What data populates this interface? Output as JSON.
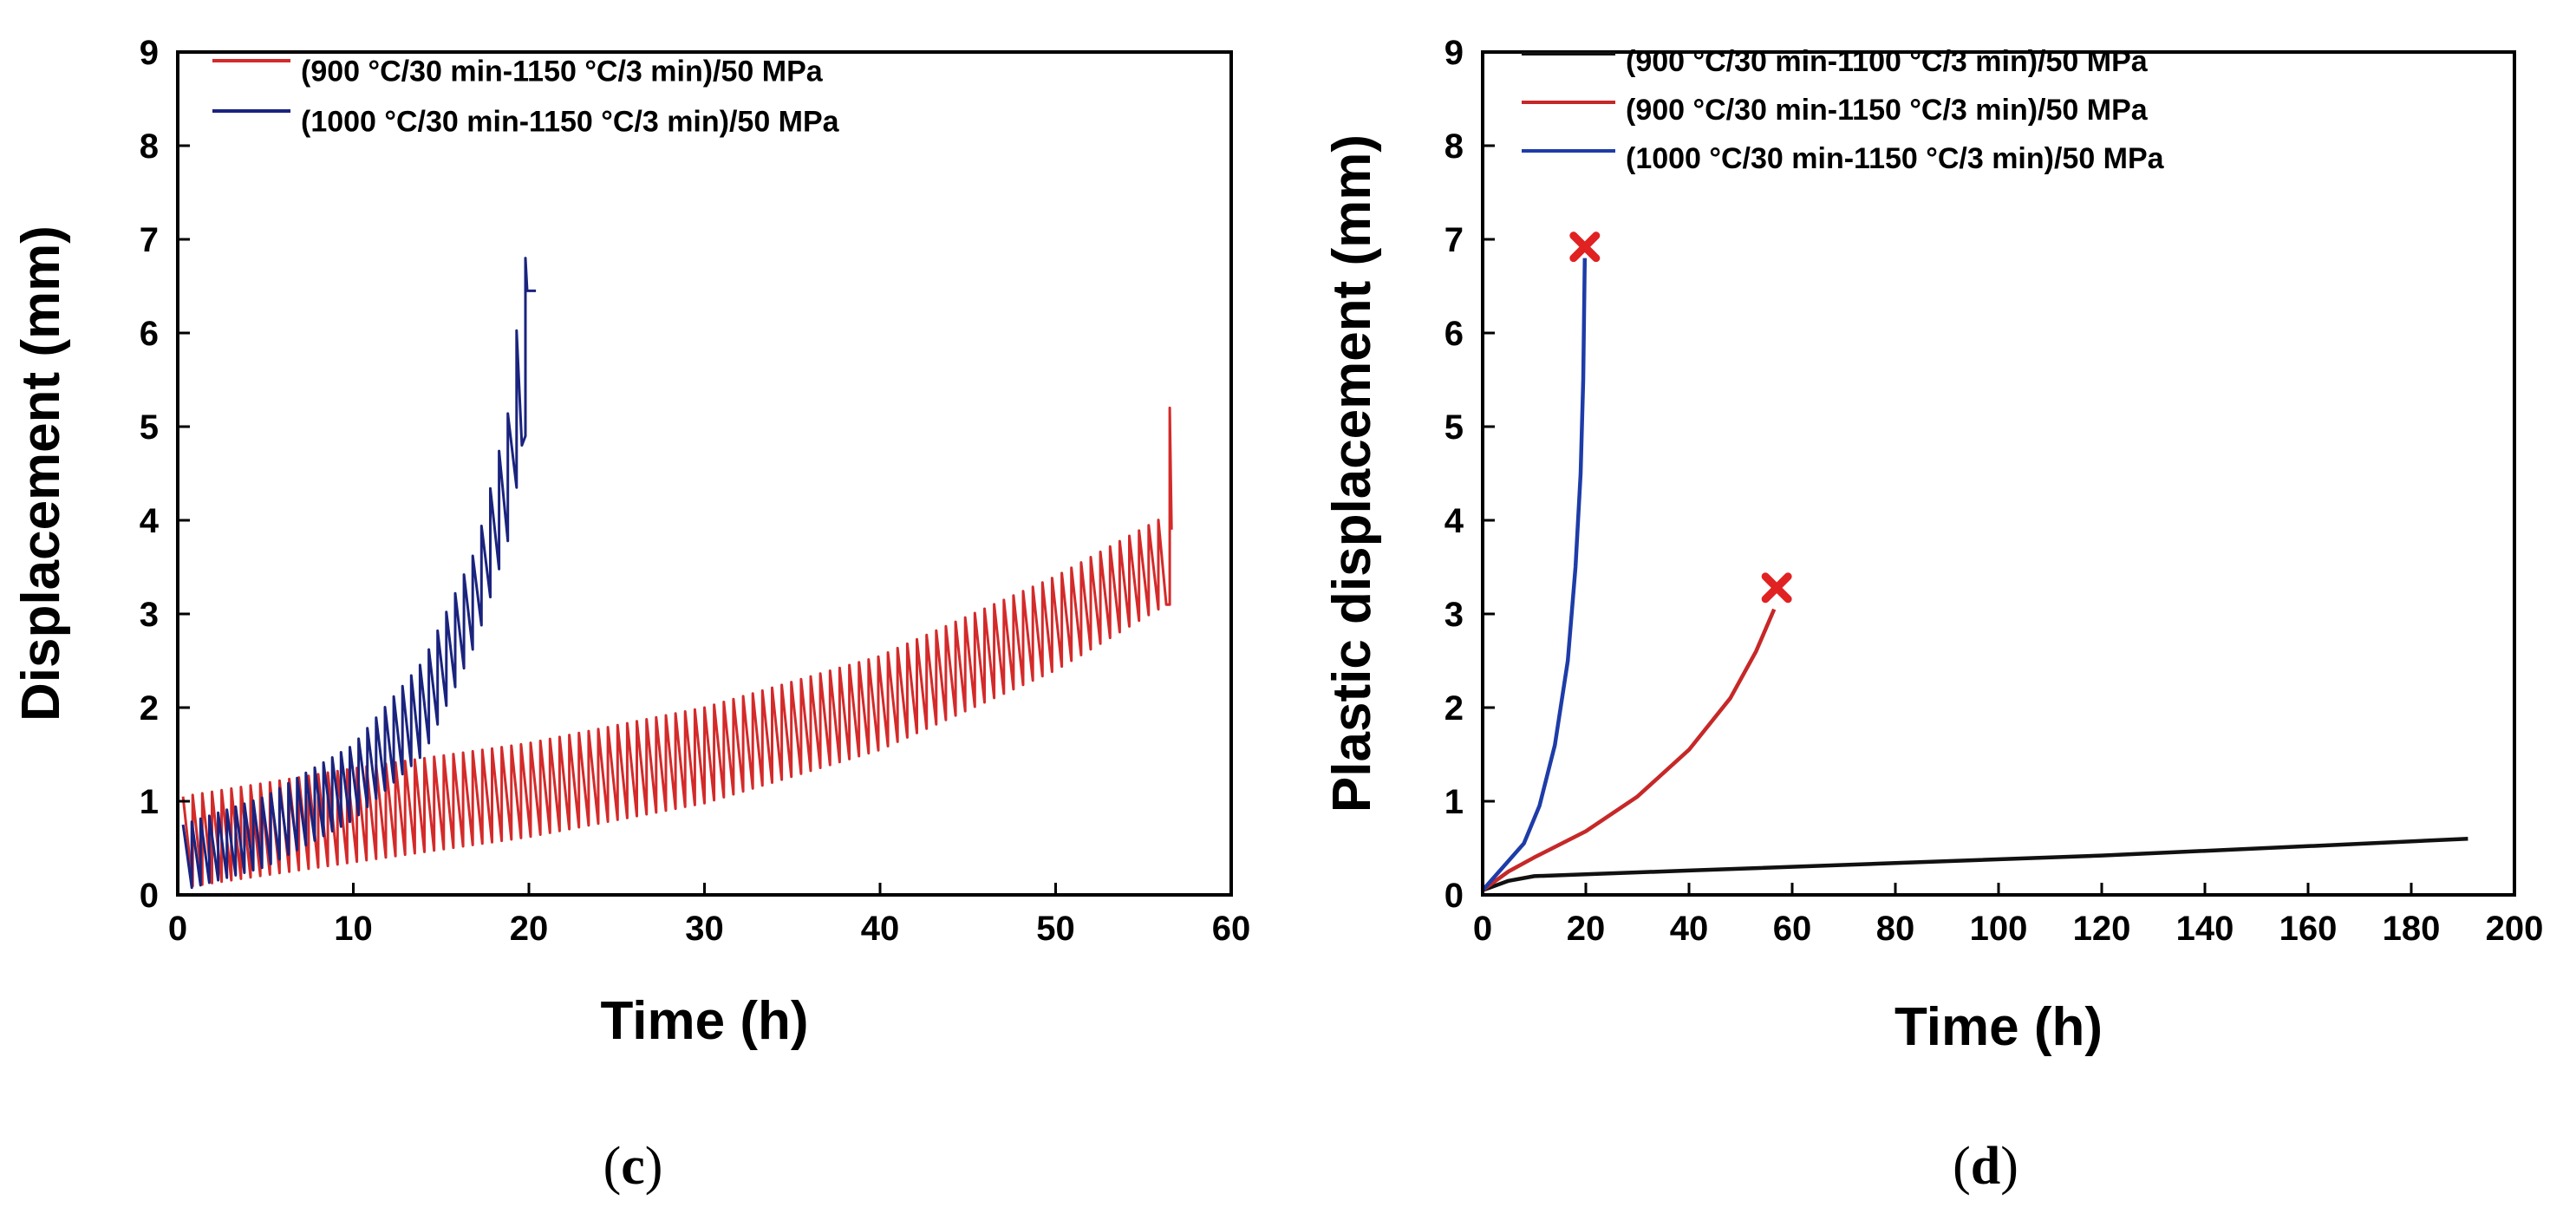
{
  "chart_data": [
    {
      "type": "line",
      "panel_label": "(c)",
      "panel_letter": "c",
      "xlabel": "Time (h)",
      "ylabel": "Displacement (mm)",
      "xlim": [
        0,
        60
      ],
      "ylim": [
        0,
        9
      ],
      "xticks": [
        0,
        10,
        20,
        30,
        40,
        50,
        60
      ],
      "yticks": [
        0,
        1,
        2,
        3,
        4,
        5,
        6,
        7,
        8,
        9
      ],
      "grid": false,
      "legend_position": "top-left",
      "series": [
        {
          "name": "(900 °C/30 min-1150 °C/3 min)/50 MPa",
          "color": "#d42a2a",
          "pattern": "oscillating",
          "cycle_period_h": 0.55,
          "x_end": 56.5,
          "base": [
            [
              0.3,
              0.08
            ],
            [
              10,
              0.35
            ],
            [
              20,
              0.62
            ],
            [
              30,
              0.98
            ],
            [
              40,
              1.55
            ],
            [
              50,
              2.4
            ],
            [
              56.3,
              3.1
            ]
          ],
          "peak": [
            [
              0.3,
              1.05
            ],
            [
              10,
              1.35
            ],
            [
              20,
              1.62
            ],
            [
              30,
              2.0
            ],
            [
              40,
              2.55
            ],
            [
              50,
              3.4
            ],
            [
              56.3,
              4.05
            ]
          ],
          "final_spike": [
            [
              56.5,
              3.1
            ],
            [
              56.5,
              5.2
            ],
            [
              56.6,
              3.9
            ]
          ]
        },
        {
          "name": "(1000 °C/30 min-1150 °C/3 min)/50 MPa",
          "color": "#1a237e",
          "pattern": "oscillating",
          "cycle_period_h": 0.5,
          "x_end": 19.8,
          "base": [
            [
              0.3,
              0.05
            ],
            [
              5,
              0.3
            ],
            [
              10,
              0.8
            ],
            [
              14,
              1.5
            ],
            [
              17,
              2.7
            ],
            [
              19,
              3.9
            ],
            [
              19.6,
              4.8
            ]
          ],
          "peak": [
            [
              0.3,
              0.75
            ],
            [
              5,
              1.05
            ],
            [
              10,
              1.6
            ],
            [
              14,
              2.5
            ],
            [
              17,
              3.7
            ],
            [
              19,
              5.3
            ],
            [
              19.6,
              6.75
            ]
          ],
          "final_spike": [
            [
              19.8,
              4.9
            ],
            [
              19.8,
              6.8
            ],
            [
              19.9,
              6.45
            ],
            [
              20.4,
              6.45
            ]
          ]
        }
      ]
    },
    {
      "type": "line",
      "panel_label": "(d)",
      "panel_letter": "d",
      "xlabel": "Time (h)",
      "ylabel": "Plastic displacement (mm)",
      "xlim": [
        0,
        200
      ],
      "ylim": [
        0,
        9
      ],
      "xticks": [
        0,
        20,
        40,
        60,
        80,
        100,
        120,
        140,
        160,
        180,
        200
      ],
      "yticks": [
        0,
        1,
        2,
        3,
        4,
        5,
        6,
        7,
        8,
        9
      ],
      "grid": false,
      "legend_position": "top-right",
      "series": [
        {
          "name": "(900 °C/30 min-1100 °C/3 min)/50 MPa",
          "color": "#111111",
          "points": [
            [
              0,
              0.05
            ],
            [
              5,
              0.15
            ],
            [
              10,
              0.2
            ],
            [
              40,
              0.26
            ],
            [
              80,
              0.34
            ],
            [
              120,
              0.42
            ],
            [
              160,
              0.52
            ],
            [
              191,
              0.6
            ]
          ]
        },
        {
          "name": "(900 °C/30 min-1150 °C/3 min)/50 MPa",
          "color": "#c62828",
          "points": [
            [
              0,
              0.05
            ],
            [
              5,
              0.25
            ],
            [
              10,
              0.4
            ],
            [
              20,
              0.68
            ],
            [
              30,
              1.05
            ],
            [
              40,
              1.55
            ],
            [
              48,
              2.1
            ],
            [
              53,
              2.6
            ],
            [
              56.5,
              3.05
            ]
          ],
          "failure_marker": [
            57,
            3.28
          ]
        },
        {
          "name": "(1000 °C/30 min-1150 °C/3 min)/50 MPa",
          "color": "#1e3ca8",
          "points": [
            [
              0,
              0.05
            ],
            [
              4,
              0.3
            ],
            [
              8,
              0.55
            ],
            [
              11,
              0.95
            ],
            [
              14,
              1.6
            ],
            [
              16.5,
              2.5
            ],
            [
              18,
              3.5
            ],
            [
              19,
              4.5
            ],
            [
              19.5,
              5.5
            ],
            [
              19.8,
              6.8
            ]
          ],
          "failure_marker": [
            19.8,
            6.92
          ]
        }
      ]
    }
  ]
}
